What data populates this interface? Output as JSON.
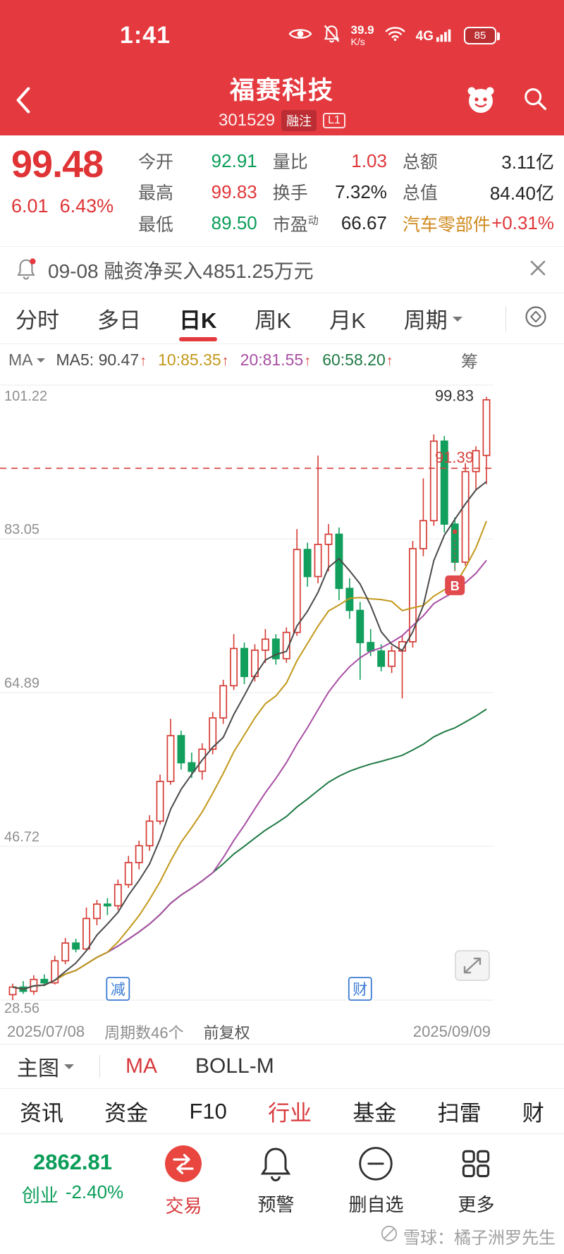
{
  "status_bar": {
    "time": "1:41",
    "net_speed_value": "39.9",
    "net_speed_unit": "K/s",
    "network": "4G",
    "battery_percent": "85"
  },
  "header": {
    "title": "福赛科技",
    "code": "301529",
    "margin_badge": "融注",
    "level_badge": "L1"
  },
  "quote": {
    "price": "99.48",
    "change": "6.01",
    "change_pct": "6.43%",
    "stats": [
      {
        "label": "今开",
        "value": "92.91",
        "color": "green"
      },
      {
        "label": "量比",
        "value": "1.03",
        "color": "red"
      },
      {
        "label": "总额",
        "value": "3.11亿",
        "color": "dark"
      },
      {
        "label": "最高",
        "value": "99.83",
        "color": "red"
      },
      {
        "label": "换手",
        "value": "7.32%",
        "color": "dark"
      },
      {
        "label": "总值",
        "value": "84.40亿",
        "color": "dark"
      },
      {
        "label": "最低",
        "value": "89.50",
        "color": "green"
      },
      {
        "label": "市盈",
        "label_sup": "动",
        "value": "66.67",
        "color": "dark"
      },
      {
        "label": "汽车零部件",
        "label_color": "orange",
        "value": "+0.31%",
        "color": "red"
      }
    ]
  },
  "news_bar": {
    "text": "09-08 融资净买入4851.25万元"
  },
  "period_tabs": {
    "items": [
      "分时",
      "多日",
      "日K",
      "周K",
      "月K"
    ],
    "active": "日K",
    "dropdown_label": "周期"
  },
  "indicator_bar": {
    "name": "MA",
    "arrow": "↑",
    "ma5_label": "MA5: 90.47",
    "ma10_label": "10:85.35",
    "ma20_label": "20:81.55",
    "ma60_label": "60:58.20",
    "right_label": "筹"
  },
  "chart_data": {
    "type": "candlestick",
    "symbol": "301529",
    "period": "日K",
    "adjust": "前复权",
    "start_date": "2025/07/08",
    "end_date": "2025/09/09",
    "period_count": 46,
    "y_ticks": [
      101.22,
      83.05,
      64.89,
      46.72,
      28.56
    ],
    "y_max": 101.22,
    "y_min": 28.56,
    "ma_legend": {
      "ma5": 90.47,
      "ma10": 85.35,
      "ma20": 81.55,
      "ma60": 58.2
    },
    "ref_line": {
      "price": 91.39,
      "label": "91.39"
    },
    "high_label": {
      "price": 99.83,
      "label": "99.83"
    },
    "buy_marker": {
      "index": 42,
      "label": "B"
    },
    "event_markers": [
      {
        "index": 10,
        "label": "减"
      },
      {
        "index": 33,
        "label": "财"
      }
    ],
    "candles": [
      [
        29.2,
        30.5,
        28.56,
        30.1
      ],
      [
        30.1,
        30.8,
        29.3,
        29.6
      ],
      [
        29.6,
        31.5,
        29.2,
        31.0
      ],
      [
        31.0,
        31.6,
        30.2,
        30.6
      ],
      [
        30.6,
        33.8,
        30.4,
        33.2
      ],
      [
        33.2,
        35.9,
        32.8,
        35.3
      ],
      [
        35.3,
        35.8,
        34.2,
        34.6
      ],
      [
        34.6,
        39.5,
        34.4,
        38.2
      ],
      [
        38.2,
        40.4,
        37.4,
        39.9
      ],
      [
        39.9,
        40.6,
        38.6,
        39.7
      ],
      [
        39.7,
        42.8,
        39.2,
        42.2
      ],
      [
        42.2,
        45.6,
        41.8,
        44.8
      ],
      [
        44.8,
        47.4,
        44.0,
        46.8
      ],
      [
        46.8,
        50.4,
        46.2,
        49.7
      ],
      [
        49.7,
        55.2,
        49.3,
        54.4
      ],
      [
        54.4,
        61.8,
        54.0,
        59.8
      ],
      [
        59.8,
        60.4,
        55.8,
        56.6
      ],
      [
        56.6,
        57.8,
        54.8,
        55.6
      ],
      [
        55.6,
        58.9,
        54.6,
        58.2
      ],
      [
        58.2,
        62.6,
        57.6,
        61.9
      ],
      [
        61.9,
        66.4,
        61.2,
        65.7
      ],
      [
        65.7,
        71.8,
        65.2,
        70.1
      ],
      [
        70.1,
        70.8,
        65.9,
        66.8
      ],
      [
        66.8,
        70.6,
        66.2,
        69.9
      ],
      [
        69.9,
        72.4,
        68.4,
        71.2
      ],
      [
        71.2,
        71.8,
        68.2,
        68.9
      ],
      [
        68.9,
        72.6,
        68.4,
        72.0
      ],
      [
        72.0,
        84.2,
        71.6,
        81.8
      ],
      [
        81.8,
        82.6,
        77.4,
        78.6
      ],
      [
        78.6,
        92.9,
        77.8,
        82.4
      ],
      [
        82.4,
        84.8,
        79.2,
        83.6
      ],
      [
        83.6,
        84.4,
        75.8,
        77.2
      ],
      [
        77.2,
        78.4,
        73.6,
        74.6
      ],
      [
        74.6,
        75.6,
        66.4,
        70.8
      ],
      [
        70.8,
        72.4,
        69.2,
        69.8
      ],
      [
        69.8,
        70.6,
        67.4,
        68.0
      ],
      [
        68.0,
        70.4,
        67.2,
        69.8
      ],
      [
        69.8,
        71.6,
        64.2,
        70.9
      ],
      [
        70.9,
        82.8,
        70.2,
        81.9
      ],
      [
        81.9,
        90.2,
        81.0,
        85.2
      ],
      [
        85.2,
        95.4,
        84.6,
        94.6
      ],
      [
        94.6,
        95.2,
        83.8,
        84.8
      ],
      [
        84.8,
        85.6,
        79.4,
        80.3
      ],
      [
        80.3,
        92.0,
        79.9,
        91.0
      ],
      [
        91.0,
        94.0,
        88.8,
        93.47
      ],
      [
        92.91,
        99.83,
        89.5,
        99.48
      ]
    ]
  },
  "chart_footer": {
    "start_date": "2025/07/08",
    "period_count_label": "周期数46个",
    "adjust_label": "前复权",
    "end_date": "2025/09/09"
  },
  "main_chart_bar": {
    "label": "主图",
    "indicators": [
      "MA",
      "BOLL-M"
    ],
    "active": "MA"
  },
  "nav_tabs": {
    "items": [
      "资讯",
      "资金",
      "F10",
      "行业",
      "基金",
      "扫雷",
      "财"
    ],
    "active": "行业"
  },
  "bottom_bar": {
    "index_value": "2862.81",
    "index_name": "创业",
    "index_change": "-2.40%",
    "actions": [
      "交易",
      "预警",
      "删自选",
      "更多"
    ]
  },
  "watermark": {
    "text": "雪球：橘子洲罗先生"
  },
  "colors": {
    "app_red": "#e43a3f",
    "price_red": "#df3335",
    "green": "#0a9d58",
    "candle_up": "#d53b34",
    "candle_down": "#129e5c",
    "ma5": "#4a4a4a",
    "ma10": "#c2981b",
    "ma20": "#a94fa4",
    "ma60": "#1f7a44",
    "ref_line": "#d7433f",
    "event_blue": "#3b7bd4"
  }
}
